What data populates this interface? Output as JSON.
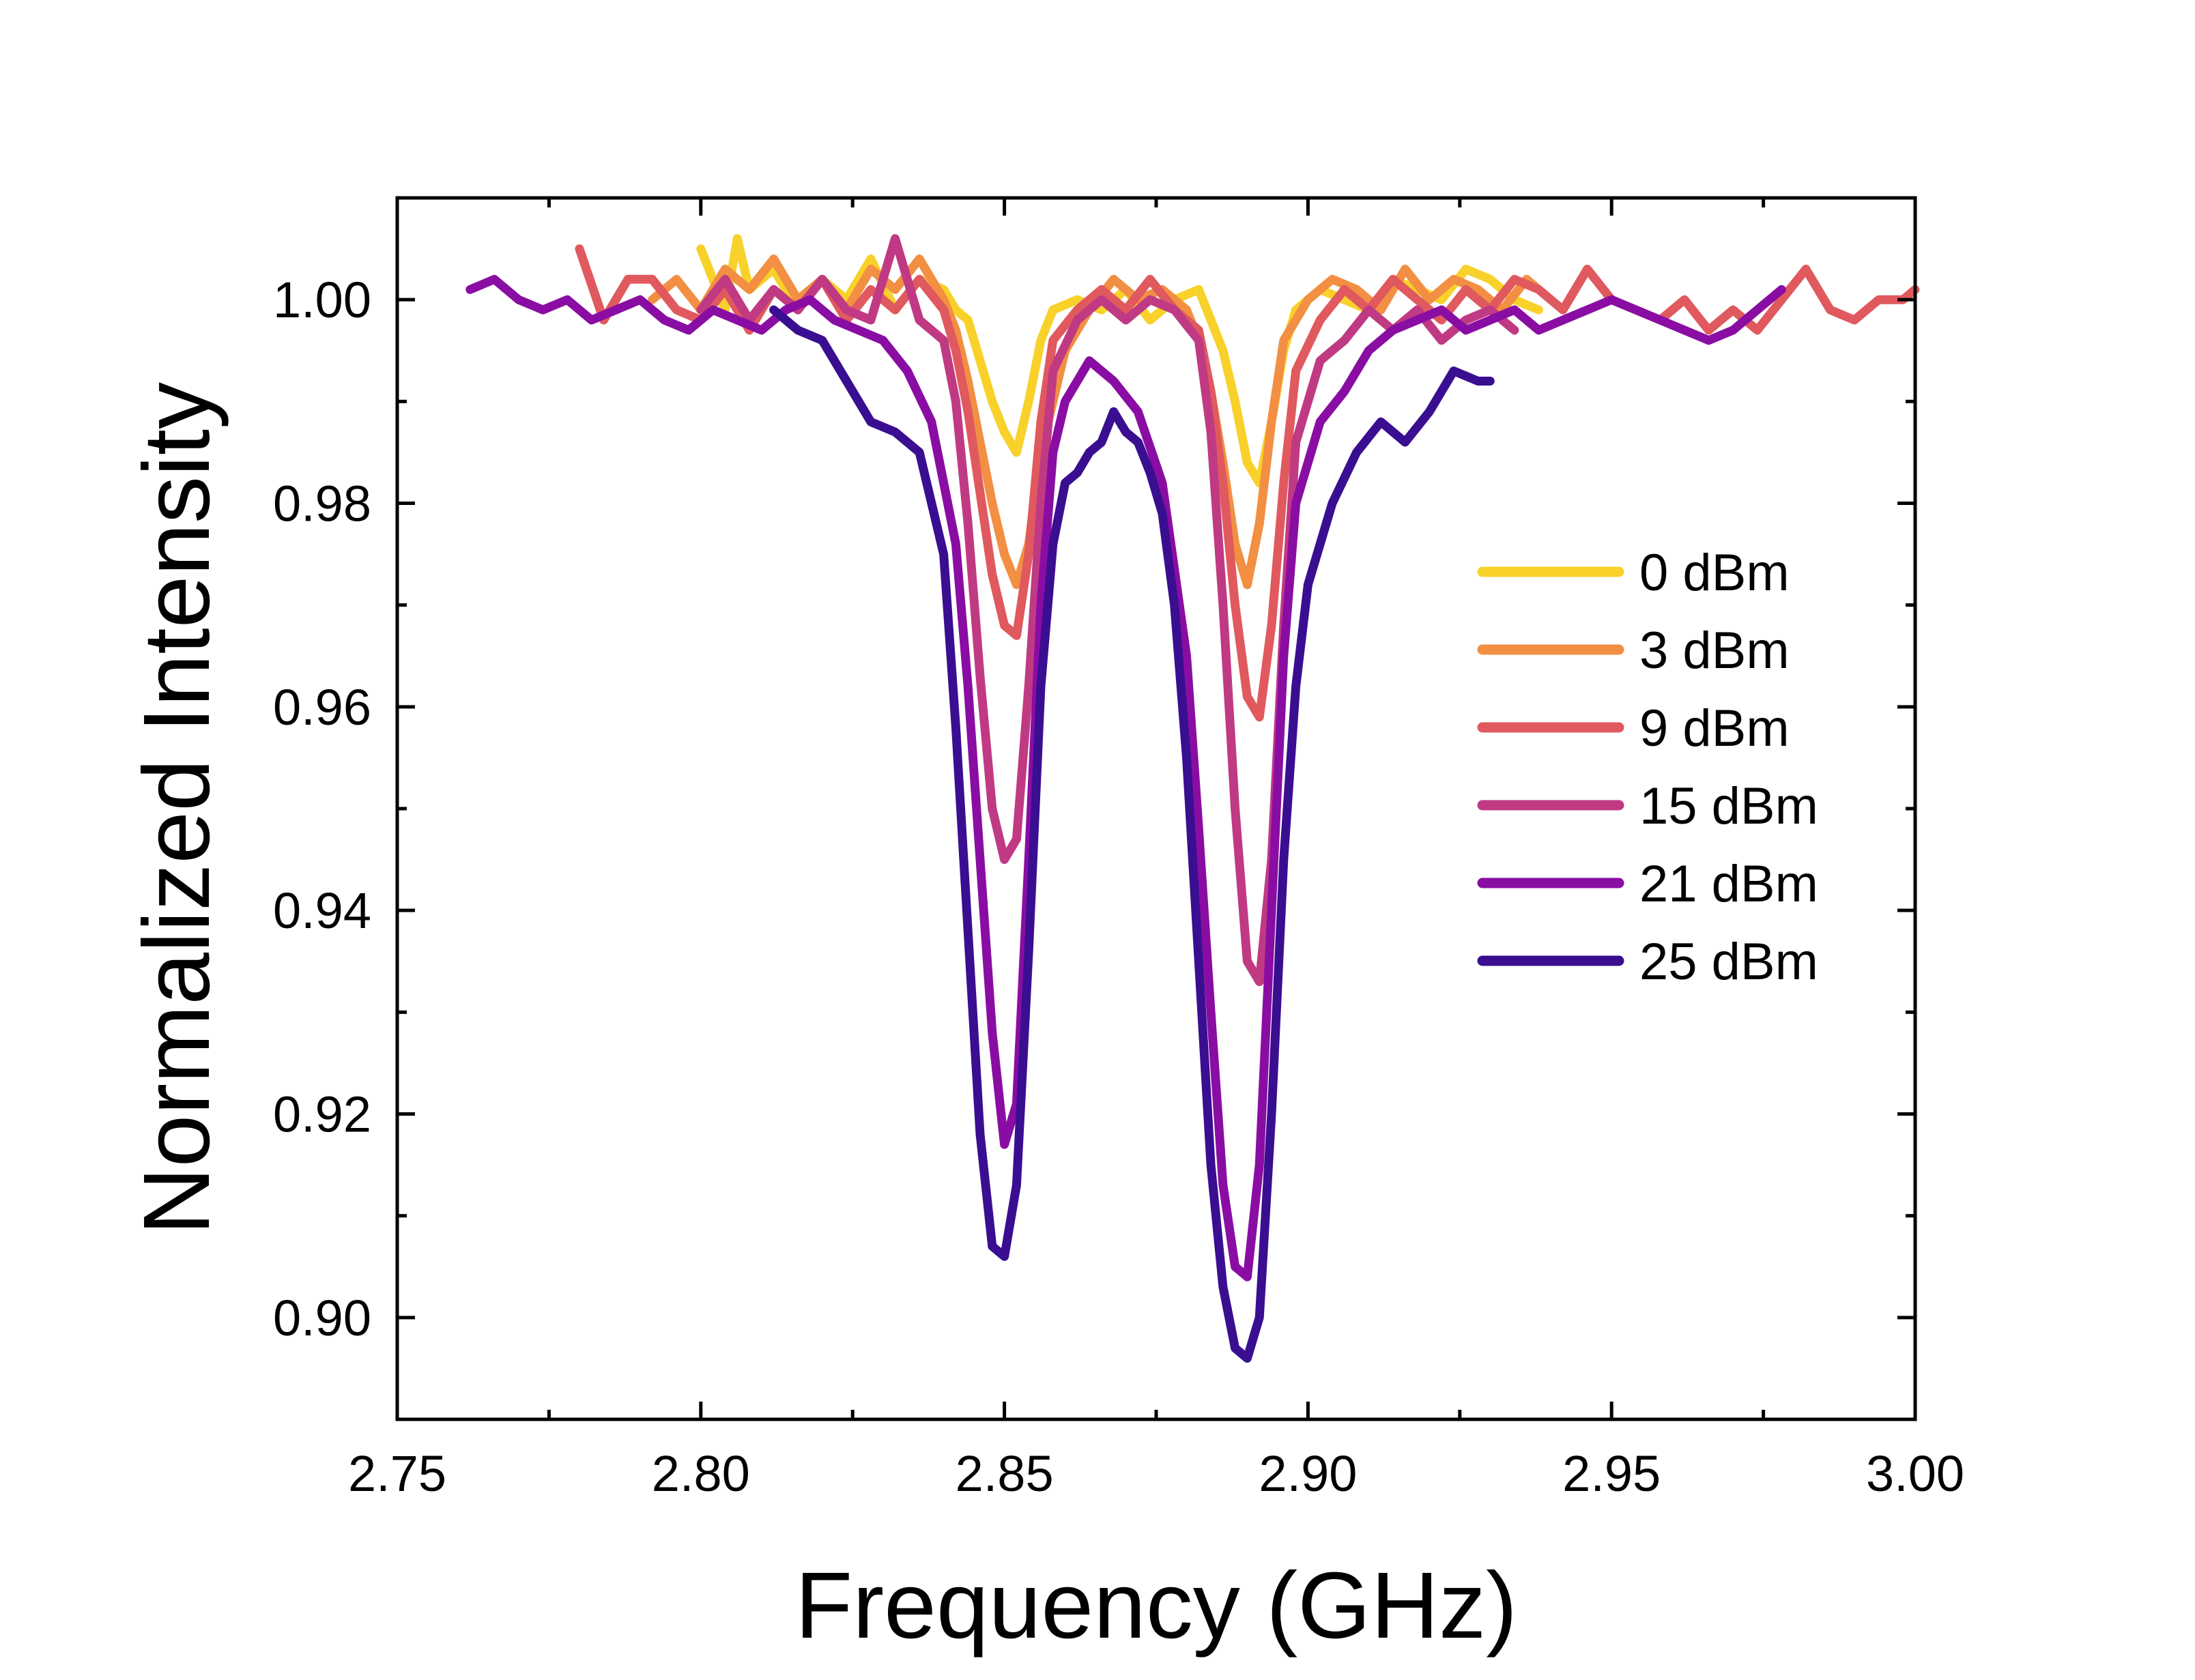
{
  "chart_data": {
    "type": "line",
    "title": "",
    "xlabel": "Frequency (GHz)",
    "ylabel": "Normalized Intensity",
    "xlim": [
      2.75,
      3.0
    ],
    "ylim": [
      0.89,
      1.01
    ],
    "xticks": [
      2.75,
      2.8,
      2.85,
      2.9,
      2.95,
      3.0
    ],
    "xtick_labels": [
      "2.75",
      "2.80",
      "2.85",
      "2.90",
      "2.95",
      "3.00"
    ],
    "yticks": [
      0.9,
      0.92,
      0.94,
      0.96,
      0.98,
      1.0
    ],
    "ytick_labels": [
      "0.90",
      "0.92",
      "0.94",
      "0.96",
      "0.98",
      "1.00"
    ],
    "grid": false,
    "legend_position": "right",
    "series": [
      {
        "name": "0 dBm",
        "color": "#F8D12A",
        "x": [
          2.8,
          2.804,
          2.806,
          2.808,
          2.812,
          2.816,
          2.82,
          2.824,
          2.828,
          2.832,
          2.836,
          2.84,
          2.842,
          2.844,
          2.846,
          2.848,
          2.85,
          2.852,
          2.854,
          2.856,
          2.858,
          2.862,
          2.866,
          2.87,
          2.874,
          2.878,
          2.882,
          2.884,
          2.886,
          2.888,
          2.89,
          2.892,
          2.894,
          2.896,
          2.898,
          2.902,
          2.906,
          2.91,
          2.914,
          2.918,
          2.922,
          2.926,
          2.93,
          2.934,
          2.938
        ],
        "y": [
          1.005,
          0.999,
          1.006,
          1.001,
          1.003,
          0.999,
          1.002,
          1.0,
          1.004,
          0.999,
          1.002,
          1.001,
          0.999,
          0.998,
          0.994,
          0.99,
          0.987,
          0.985,
          0.99,
          0.996,
          0.999,
          1.0,
          0.999,
          1.001,
          0.998,
          1.0,
          1.001,
          0.998,
          0.995,
          0.99,
          0.984,
          0.982,
          0.988,
          0.995,
          0.999,
          1.001,
          1.0,
          0.999,
          1.002,
          1.001,
          1.0,
          1.003,
          1.002,
          1.0,
          0.999
        ]
      },
      {
        "name": "3 dBm",
        "color": "#F28F43",
        "x": [
          2.792,
          2.796,
          2.8,
          2.804,
          2.808,
          2.812,
          2.816,
          2.82,
          2.824,
          2.828,
          2.832,
          2.836,
          2.84,
          2.842,
          2.844,
          2.846,
          2.848,
          2.85,
          2.852,
          2.854,
          2.856,
          2.86,
          2.864,
          2.868,
          2.872,
          2.876,
          2.88,
          2.882,
          2.884,
          2.886,
          2.888,
          2.89,
          2.892,
          2.894,
          2.896,
          2.9,
          2.904,
          2.908,
          2.912,
          2.916,
          2.92,
          2.924,
          2.928,
          2.932,
          2.936,
          2.94
        ],
        "y": [
          1.0,
          1.002,
          0.999,
          1.003,
          1.001,
          1.004,
          1.0,
          1.002,
          0.999,
          1.003,
          1.001,
          1.004,
          1.0,
          0.997,
          0.992,
          0.986,
          0.98,
          0.975,
          0.972,
          0.976,
          0.985,
          0.995,
          0.999,
          1.002,
          1.0,
          1.001,
          0.999,
          0.996,
          0.991,
          0.984,
          0.976,
          0.972,
          0.978,
          0.988,
          0.996,
          1.0,
          1.002,
          1.001,
          0.999,
          1.003,
          1.0,
          1.002,
          1.001,
          0.999,
          1.002,
          1.0
        ]
      },
      {
        "name": "9 dBm",
        "color": "#E0595E",
        "x": [
          2.78,
          2.784,
          2.788,
          2.792,
          2.796,
          2.8,
          2.804,
          2.808,
          2.812,
          2.816,
          2.82,
          2.824,
          2.828,
          2.832,
          2.836,
          2.84,
          2.842,
          2.844,
          2.846,
          2.848,
          2.85,
          2.852,
          2.854,
          2.856,
          2.858,
          2.862,
          2.866,
          2.87,
          2.874,
          2.878,
          2.882,
          2.884,
          2.886,
          2.888,
          2.89,
          2.892,
          2.894,
          2.896,
          2.898,
          2.902,
          2.906,
          2.91,
          2.914,
          2.918,
          2.922,
          2.926,
          2.93,
          2.934,
          2.938,
          2.942,
          2.946,
          2.95,
          2.954,
          2.958,
          2.962,
          2.966,
          2.97,
          2.974,
          2.978,
          2.982,
          2.986,
          2.99,
          2.994,
          2.998,
          3.0
        ],
        "y": [
          1.005,
          0.998,
          1.002,
          1.002,
          0.999,
          0.998,
          1.001,
          0.997,
          1.001,
          0.999,
          1.002,
          0.998,
          1.001,
          0.999,
          1.002,
          0.999,
          0.995,
          0.989,
          0.981,
          0.973,
          0.968,
          0.967,
          0.975,
          0.988,
          0.996,
          0.999,
          1.001,
          0.999,
          1.002,
          0.999,
          0.997,
          0.991,
          0.982,
          0.97,
          0.961,
          0.959,
          0.968,
          0.982,
          0.993,
          0.998,
          1.001,
          0.999,
          1.002,
          1.0,
          0.998,
          1.001,
          0.999,
          1.002,
          1.001,
          0.999,
          1.003,
          1.0,
          0.999,
          0.998,
          1.0,
          0.997,
          0.999,
          0.997,
          1.0,
          1.003,
          0.999,
          0.998,
          1.0,
          1.0,
          1.001
        ]
      },
      {
        "name": "15 dBm",
        "color": "#C03A83",
        "x": [
          2.8,
          2.804,
          2.808,
          2.812,
          2.816,
          2.82,
          2.824,
          2.828,
          2.832,
          2.836,
          2.84,
          2.842,
          2.844,
          2.846,
          2.848,
          2.85,
          2.852,
          2.854,
          2.856,
          2.858,
          2.862,
          2.866,
          2.87,
          2.874,
          2.878,
          2.882,
          2.884,
          2.886,
          2.888,
          2.89,
          2.892,
          2.894,
          2.896,
          2.898,
          2.902,
          2.906,
          2.91,
          2.914,
          2.918,
          2.922,
          2.926,
          2.93,
          2.934
        ],
        "y": [
          0.999,
          1.002,
          0.998,
          1.001,
          0.999,
          1.002,
          0.999,
          0.998,
          1.006,
          0.998,
          0.996,
          0.99,
          0.978,
          0.963,
          0.95,
          0.945,
          0.947,
          0.962,
          0.98,
          0.993,
          0.998,
          1.0,
          0.998,
          1.0,
          0.999,
          0.996,
          0.987,
          0.97,
          0.95,
          0.935,
          0.933,
          0.945,
          0.968,
          0.986,
          0.994,
          0.996,
          0.999,
          0.997,
          0.999,
          0.996,
          0.998,
          0.999,
          0.997
        ]
      },
      {
        "name": "21 dBm",
        "color": "#8A0DA3",
        "x": [
          2.762,
          2.766,
          2.77,
          2.774,
          2.778,
          2.782,
          2.786,
          2.79,
          2.794,
          2.798,
          2.802,
          2.806,
          2.81,
          2.814,
          2.818,
          2.822,
          2.826,
          2.83,
          2.834,
          2.838,
          2.842,
          2.844,
          2.846,
          2.848,
          2.85,
          2.852,
          2.854,
          2.856,
          2.858,
          2.86,
          2.864,
          2.866,
          2.868,
          2.872,
          2.876,
          2.88,
          2.882,
          2.884,
          2.886,
          2.888,
          2.89,
          2.892,
          2.894,
          2.896,
          2.898,
          2.902,
          2.906,
          2.91,
          2.914,
          2.918,
          2.922,
          2.926,
          2.93,
          2.934,
          2.938,
          2.942,
          2.946,
          2.95,
          2.954,
          2.958,
          2.962,
          2.966,
          2.97,
          2.974,
          2.978
        ],
        "y": [
          1.001,
          1.002,
          1.0,
          0.999,
          1.0,
          0.998,
          0.999,
          1.0,
          0.998,
          0.997,
          0.999,
          0.998,
          0.997,
          0.999,
          1.0,
          0.998,
          0.997,
          0.996,
          0.993,
          0.988,
          0.976,
          0.962,
          0.945,
          0.928,
          0.917,
          0.921,
          0.945,
          0.97,
          0.985,
          0.99,
          0.994,
          0.993,
          0.992,
          0.989,
          0.982,
          0.965,
          0.948,
          0.93,
          0.913,
          0.905,
          0.904,
          0.915,
          0.94,
          0.965,
          0.98,
          0.988,
          0.991,
          0.995,
          0.997,
          0.998,
          0.999,
          0.997,
          0.998,
          0.999,
          0.997,
          0.998,
          0.999,
          1.0,
          0.999,
          0.998,
          0.997,
          0.996,
          0.997,
          0.999,
          1.001
        ]
      },
      {
        "name": "25 dBm",
        "color": "#3A0E91",
        "x": [
          2.812,
          2.816,
          2.82,
          2.824,
          2.828,
          2.832,
          2.836,
          2.84,
          2.842,
          2.844,
          2.846,
          2.848,
          2.85,
          2.852,
          2.854,
          2.856,
          2.858,
          2.86,
          2.862,
          2.864,
          2.866,
          2.868,
          2.87,
          2.872,
          2.874,
          2.876,
          2.878,
          2.88,
          2.882,
          2.884,
          2.886,
          2.888,
          2.89,
          2.892,
          2.894,
          2.896,
          2.898,
          2.9,
          2.904,
          2.908,
          2.912,
          2.916,
          2.92,
          2.924,
          2.928,
          2.93
        ],
        "y": [
          0.999,
          0.997,
          0.996,
          0.992,
          0.988,
          0.987,
          0.985,
          0.975,
          0.958,
          0.938,
          0.918,
          0.907,
          0.906,
          0.913,
          0.936,
          0.962,
          0.976,
          0.982,
          0.983,
          0.985,
          0.986,
          0.989,
          0.987,
          0.986,
          0.983,
          0.979,
          0.97,
          0.955,
          0.935,
          0.915,
          0.903,
          0.897,
          0.896,
          0.9,
          0.92,
          0.945,
          0.962,
          0.972,
          0.98,
          0.985,
          0.988,
          0.986,
          0.989,
          0.993,
          0.992,
          0.992
        ]
      }
    ]
  }
}
